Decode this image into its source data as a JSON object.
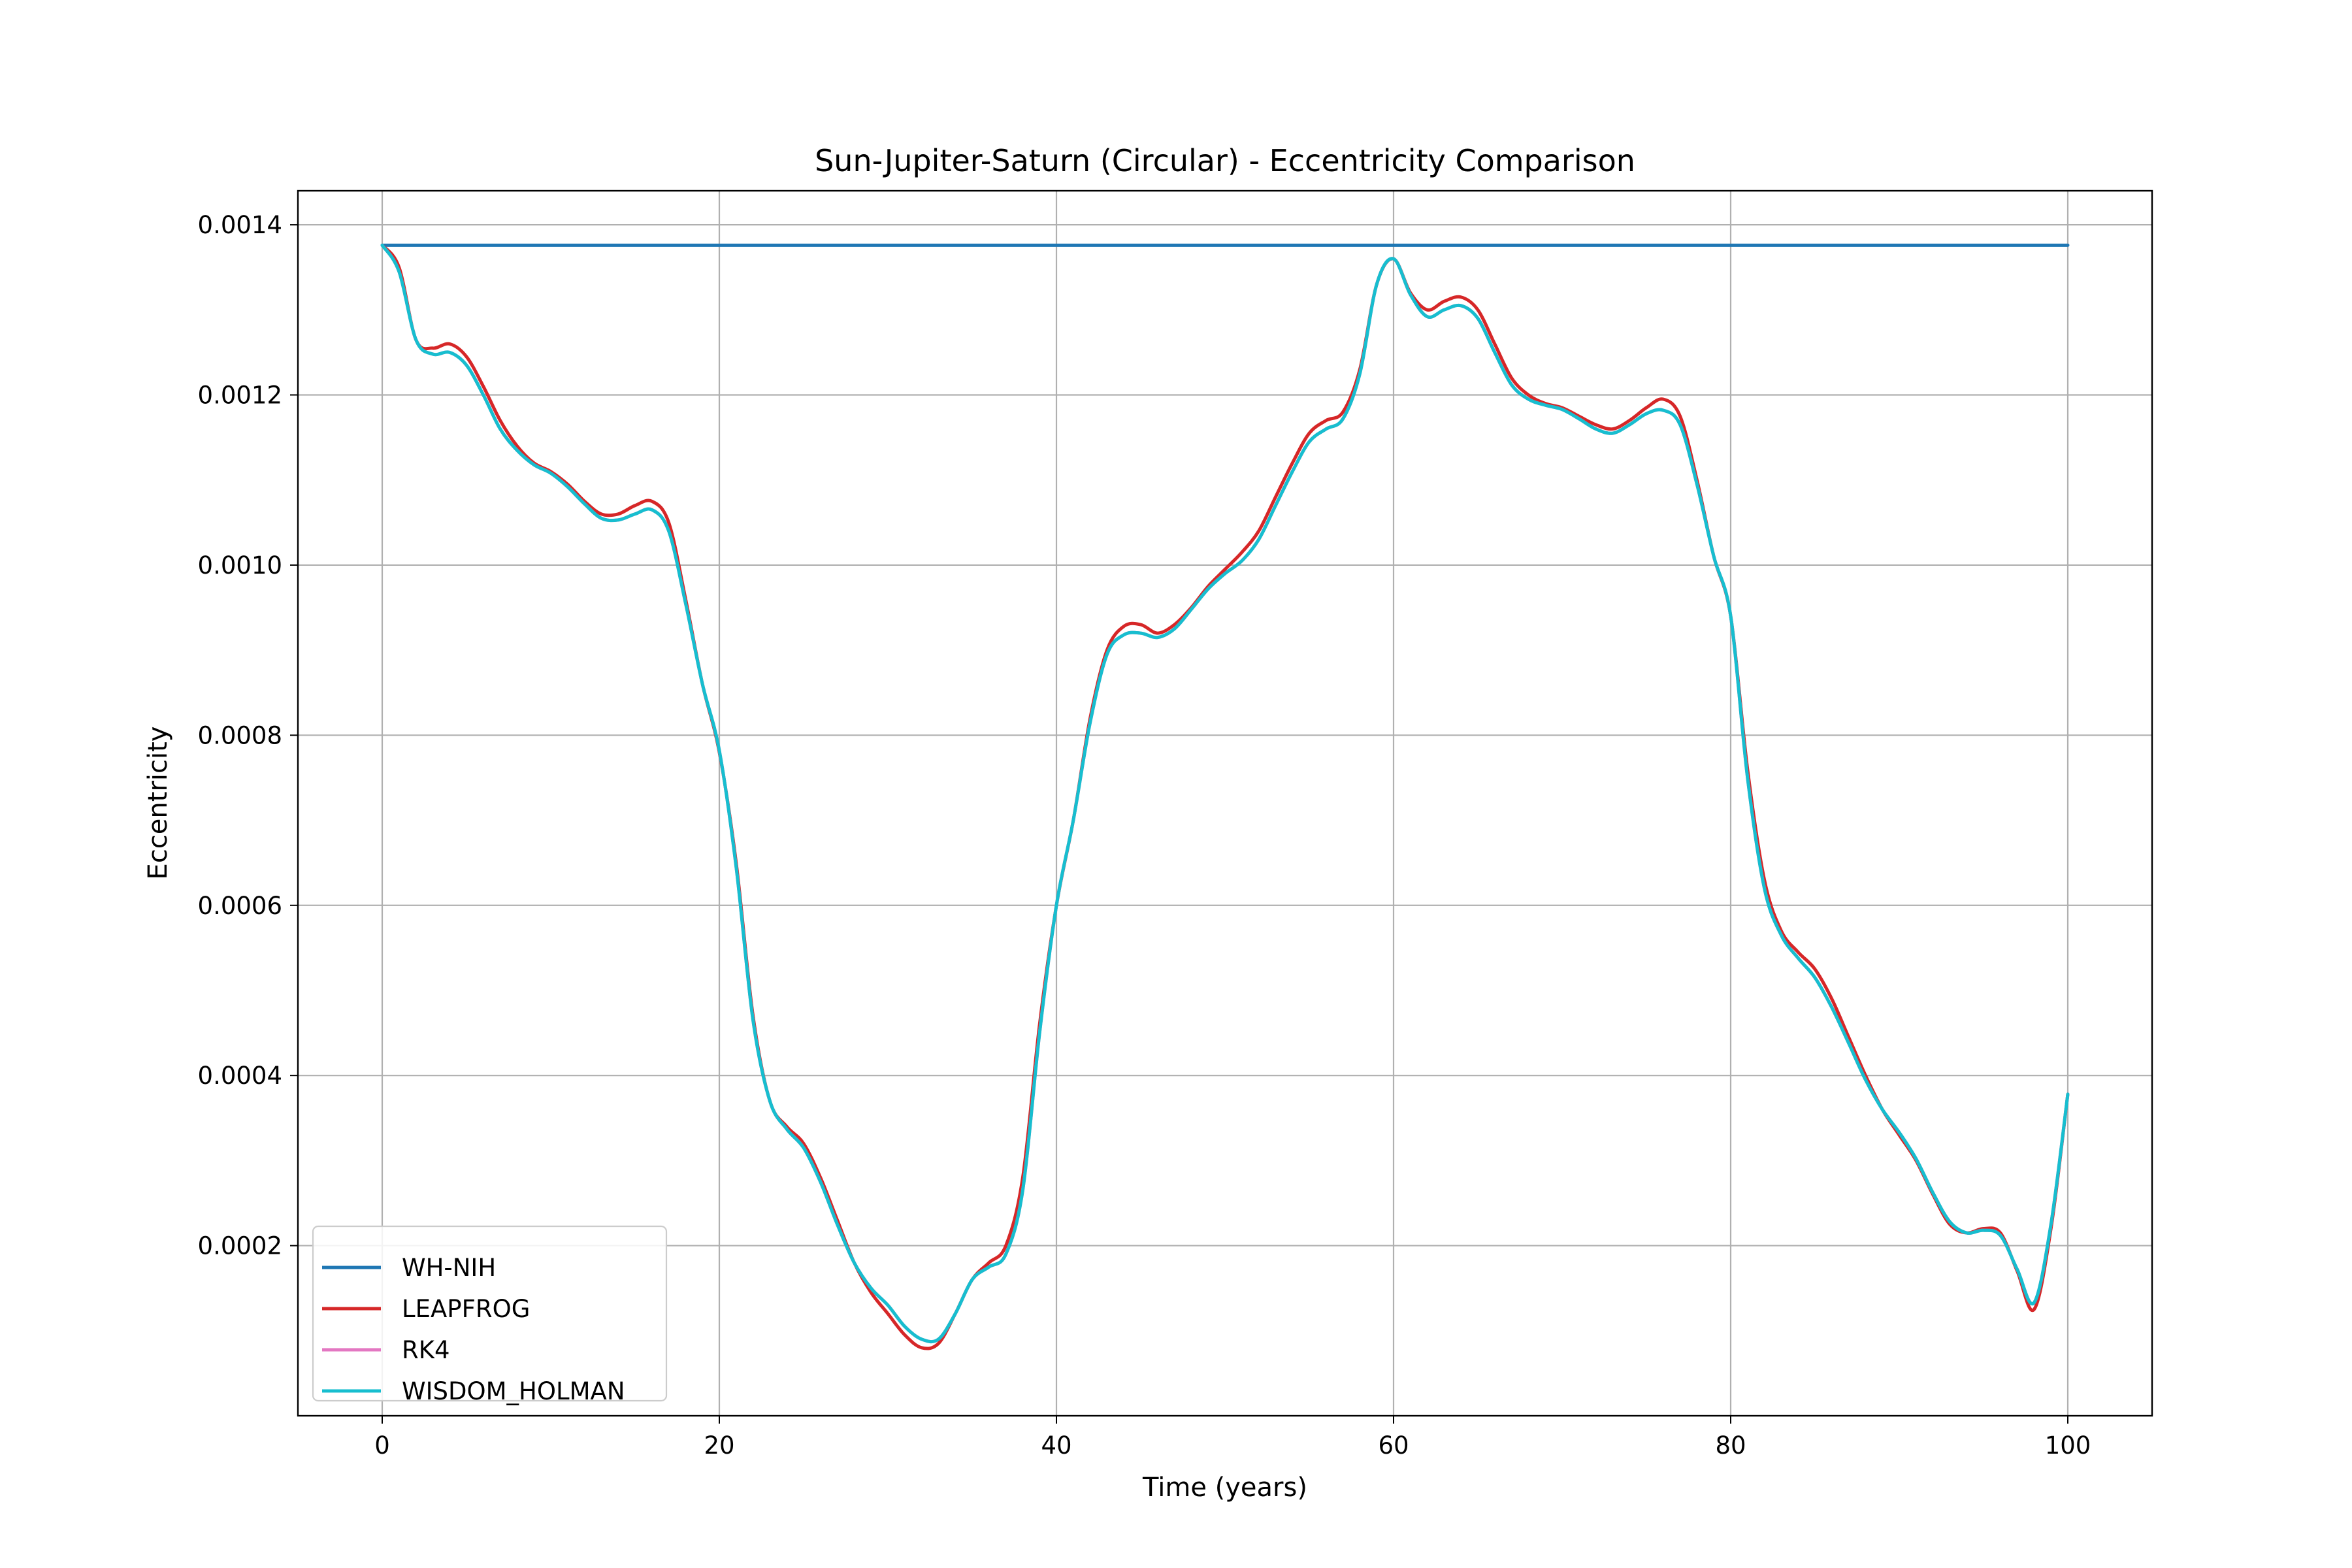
{
  "chart_data": {
    "type": "line",
    "title": "Sun-Jupiter-Saturn (Circular) - Eccentricity Comparison",
    "xlabel": "Time (years)",
    "ylabel": "Eccentricity",
    "xlim": [
      -5,
      105
    ],
    "ylim": [
      0.0,
      0.00144
    ],
    "xticks": [
      0,
      20,
      40,
      60,
      80,
      100
    ],
    "xtick_labels": [
      "0",
      "20",
      "40",
      "60",
      "80",
      "100"
    ],
    "yticks": [
      0.0002,
      0.0004,
      0.0006,
      0.0008,
      0.001,
      0.0012,
      0.0014
    ],
    "ytick_labels": [
      "0.0002",
      "0.0004",
      "0.0006",
      "0.0008",
      "0.0010",
      "0.0012",
      "0.0014"
    ],
    "grid": true,
    "legend_position": "lower-left",
    "x": [
      0,
      1,
      2,
      3,
      4,
      5,
      6,
      7,
      8,
      9,
      10,
      11,
      12,
      13,
      14,
      15,
      16,
      17,
      18,
      19,
      20,
      21,
      22,
      23,
      24,
      25,
      26,
      27,
      28,
      29,
      30,
      31,
      32,
      33,
      34,
      35,
      36,
      37,
      38,
      39,
      40,
      41,
      42,
      43,
      44,
      45,
      46,
      47,
      48,
      49,
      50,
      51,
      52,
      53,
      54,
      55,
      56,
      57,
      58,
      59,
      60,
      61,
      62,
      63,
      64,
      65,
      66,
      67,
      68,
      69,
      70,
      71,
      72,
      73,
      74,
      75,
      76,
      77,
      78,
      79,
      80,
      81,
      82,
      83,
      84,
      85,
      86,
      87,
      88,
      89,
      90,
      91,
      92,
      93,
      94,
      95,
      96,
      97,
      98,
      99,
      100
    ],
    "series": [
      {
        "name": "WH-NIH",
        "color": "#1f77b4",
        "values": [
          0.001376,
          0.001376,
          0.001376,
          0.001376,
          0.001376,
          0.001376,
          0.001376,
          0.001376,
          0.001376,
          0.001376,
          0.001376,
          0.001376,
          0.001376,
          0.001376,
          0.001376,
          0.001376,
          0.001376,
          0.001376,
          0.001376,
          0.001376,
          0.001376,
          0.001376,
          0.001376,
          0.001376,
          0.001376,
          0.001376,
          0.001376,
          0.001376,
          0.001376,
          0.001376,
          0.001376,
          0.001376,
          0.001376,
          0.001376,
          0.001376,
          0.001376,
          0.001376,
          0.001376,
          0.001376,
          0.001376,
          0.001376,
          0.001376,
          0.001376,
          0.001376,
          0.001376,
          0.001376,
          0.001376,
          0.001376,
          0.001376,
          0.001376,
          0.001376,
          0.001376,
          0.001376,
          0.001376,
          0.001376,
          0.001376,
          0.001376,
          0.001376,
          0.001376,
          0.001376,
          0.001376,
          0.001376,
          0.001376,
          0.001376,
          0.001376,
          0.001376,
          0.001376,
          0.001376,
          0.001376,
          0.001376,
          0.001376,
          0.001376,
          0.001376,
          0.001376,
          0.001376,
          0.001376,
          0.001376,
          0.001376,
          0.001376,
          0.001376,
          0.001376,
          0.001376,
          0.001376,
          0.001376,
          0.001376,
          0.001376,
          0.001376,
          0.001376,
          0.001376,
          0.001376,
          0.001376,
          0.001376,
          0.001376,
          0.001376,
          0.001376,
          0.001376,
          0.001376,
          0.001376,
          0.001376,
          0.001376,
          0.001376
        ]
      },
      {
        "name": "LEAPFROG",
        "color": "#d62728",
        "values": [
          0.001376,
          0.00135,
          0.001265,
          0.001255,
          0.00126,
          0.001245,
          0.00121,
          0.00117,
          0.00114,
          0.00112,
          0.00111,
          0.001095,
          0.001075,
          0.00106,
          0.00106,
          0.00107,
          0.001075,
          0.00105,
          0.00096,
          0.00086,
          0.00078,
          0.00065,
          0.00047,
          0.00037,
          0.00034,
          0.00032,
          0.00028,
          0.00023,
          0.00018,
          0.000145,
          0.00012,
          9.5e-05,
          8e-05,
          8.5e-05,
          0.00012,
          0.00016,
          0.00018,
          0.0002,
          0.00028,
          0.00046,
          0.0006,
          0.0007,
          0.00082,
          0.0009,
          0.000928,
          0.00093,
          0.00092,
          0.00093,
          0.00095,
          0.000975,
          0.000995,
          0.001015,
          0.00104,
          0.00108,
          0.00112,
          0.001155,
          0.00117,
          0.00118,
          0.00123,
          0.00133,
          0.00136,
          0.00132,
          0.0013,
          0.00131,
          0.001315,
          0.0013,
          0.00126,
          0.00122,
          0.0012,
          0.00119,
          0.001185,
          0.001175,
          0.001165,
          0.00116,
          0.00117,
          0.001185,
          0.001195,
          0.001175,
          0.0011,
          0.00101,
          0.00094,
          0.00076,
          0.00063,
          0.00057,
          0.000545,
          0.000525,
          0.00049,
          0.000445,
          0.0004,
          0.00036,
          0.00033,
          0.0003,
          0.00026,
          0.000225,
          0.000215,
          0.00022,
          0.000215,
          0.00017,
          0.000125,
          0.00022,
          0.000378
        ]
      },
      {
        "name": "RK4",
        "color": "#e377c2",
        "values": [
          0.001376,
          0.001345,
          0.001265,
          0.001248,
          0.00125,
          0.001235,
          0.0012,
          0.00116,
          0.001135,
          0.001118,
          0.001108,
          0.001092,
          0.001072,
          0.001055,
          0.001053,
          0.00106,
          0.001065,
          0.00104,
          0.000955,
          0.00086,
          0.000782,
          0.000645,
          0.000465,
          0.00037,
          0.000337,
          0.000315,
          0.000275,
          0.000225,
          0.00018,
          0.00015,
          0.00013,
          0.000105,
          9e-05,
          9e-05,
          0.00012,
          0.00016,
          0.000175,
          0.00019,
          0.000265,
          0.00045,
          0.0006,
          0.0007,
          0.000815,
          0.000895,
          0.000918,
          0.00092,
          0.000915,
          0.000925,
          0.000948,
          0.000972,
          0.00099,
          0.001005,
          0.00103,
          0.00107,
          0.00111,
          0.001145,
          0.00116,
          0.001172,
          0.001225,
          0.00133,
          0.00136,
          0.001318,
          0.001292,
          0.0013,
          0.001305,
          0.00129,
          0.00125,
          0.001212,
          0.001195,
          0.001188,
          0.001183,
          0.001172,
          0.00116,
          0.001155,
          0.001165,
          0.001178,
          0.001182,
          0.001165,
          0.001095,
          0.00101,
          0.00094,
          0.00075,
          0.00062,
          0.000565,
          0.000538,
          0.000515,
          0.00048,
          0.000438,
          0.000395,
          0.00036,
          0.000333,
          0.000302,
          0.000262,
          0.000228,
          0.000215,
          0.000218,
          0.000212,
          0.000172,
          0.000133,
          0.000225,
          0.000378
        ]
      },
      {
        "name": "WISDOM_HOLMAN",
        "color": "#17becf",
        "values": [
          0.001376,
          0.001345,
          0.001265,
          0.001248,
          0.00125,
          0.001235,
          0.0012,
          0.00116,
          0.001135,
          0.001118,
          0.001108,
          0.001092,
          0.001072,
          0.001055,
          0.001053,
          0.00106,
          0.001065,
          0.00104,
          0.000955,
          0.00086,
          0.000782,
          0.000645,
          0.000465,
          0.00037,
          0.000337,
          0.000315,
          0.000275,
          0.000225,
          0.00018,
          0.00015,
          0.00013,
          0.000105,
          9e-05,
          9e-05,
          0.00012,
          0.00016,
          0.000175,
          0.00019,
          0.000265,
          0.00045,
          0.0006,
          0.0007,
          0.000815,
          0.000895,
          0.000918,
          0.00092,
          0.000915,
          0.000925,
          0.000948,
          0.000972,
          0.00099,
          0.001005,
          0.00103,
          0.00107,
          0.00111,
          0.001145,
          0.00116,
          0.001172,
          0.001225,
          0.00133,
          0.00136,
          0.001318,
          0.001292,
          0.0013,
          0.001305,
          0.00129,
          0.00125,
          0.001212,
          0.001195,
          0.001188,
          0.001183,
          0.001172,
          0.00116,
          0.001155,
          0.001165,
          0.001178,
          0.001182,
          0.001165,
          0.001095,
          0.00101,
          0.00094,
          0.00075,
          0.00062,
          0.000565,
          0.000538,
          0.000515,
          0.00048,
          0.000438,
          0.000395,
          0.00036,
          0.000333,
          0.000302,
          0.000262,
          0.000228,
          0.000215,
          0.000218,
          0.000212,
          0.000172,
          0.000133,
          0.000225,
          0.000378
        ]
      }
    ]
  }
}
